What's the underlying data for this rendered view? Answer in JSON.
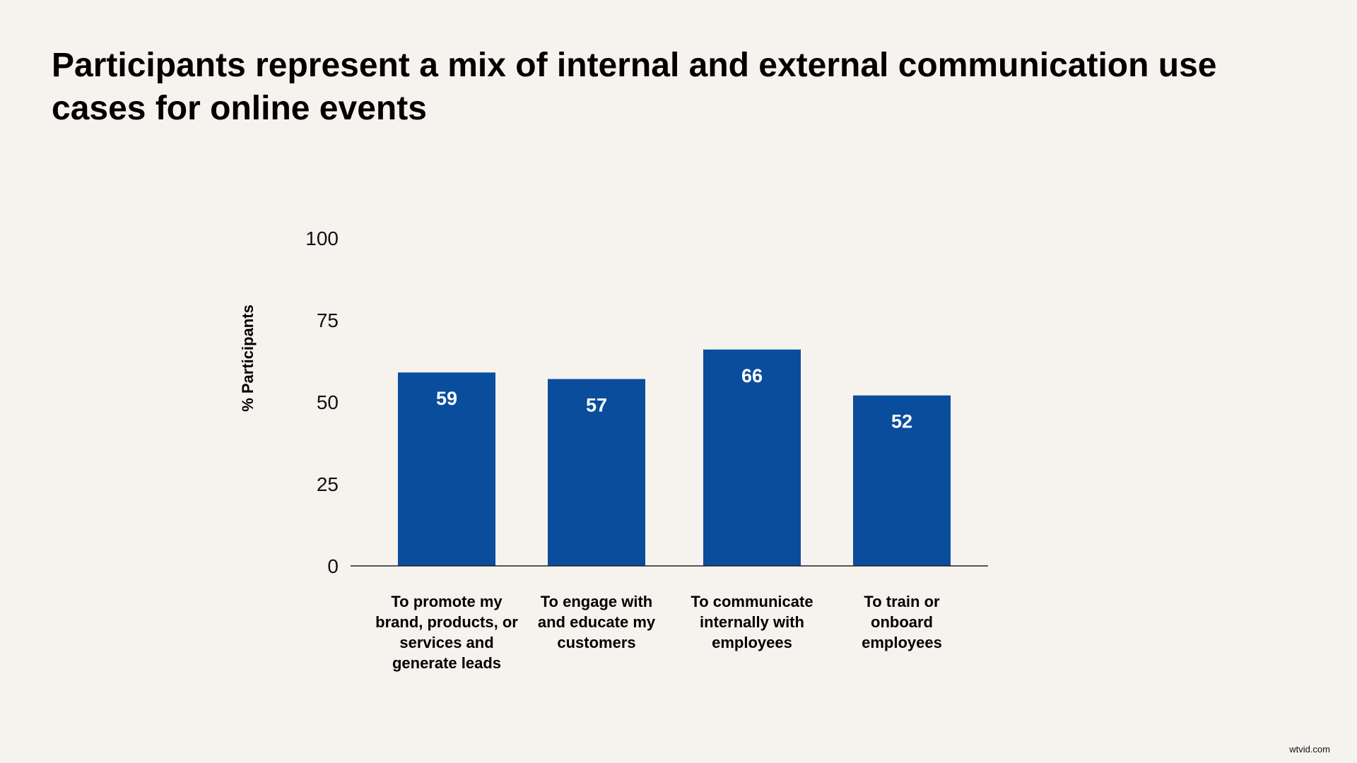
{
  "title": "Participants represent a mix of internal and external communication use cases for online events",
  "watermark": "wtvid.com",
  "colors": {
    "background": "#f6f2ee",
    "bar": "#0a4d9c",
    "bar_label": "#ffffff"
  },
  "chart_data": {
    "type": "bar",
    "title": "Participants represent a mix of internal and external communication use cases for online events",
    "xlabel": "",
    "ylabel": "% Participants",
    "ylim": [
      0,
      100
    ],
    "yticks": [
      0,
      25,
      50,
      75,
      100
    ],
    "grid": false,
    "categories": [
      [
        "To promote my",
        "brand, products, or",
        "services and",
        "generate leads"
      ],
      [
        "To engage with",
        "and educate my",
        "customers"
      ],
      [
        "To communicate",
        "internally with",
        "employees"
      ],
      [
        "To train or",
        "onboard",
        "employees"
      ]
    ],
    "values": [
      59,
      57,
      66,
      52
    ],
    "data_labels": [
      "59",
      "57",
      "66",
      "52"
    ]
  }
}
